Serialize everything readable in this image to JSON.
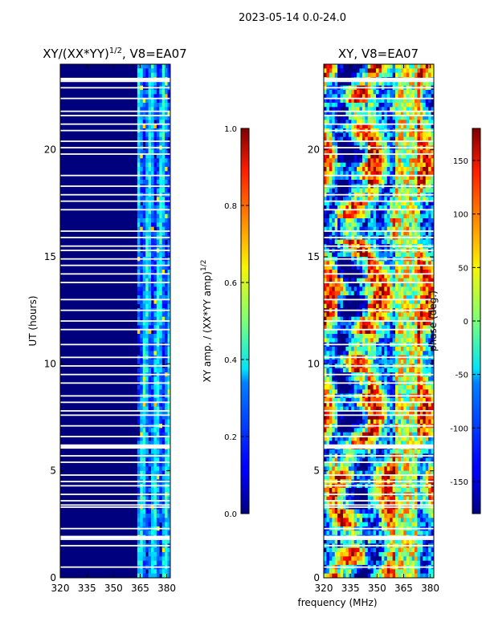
{
  "suptitle": "2023-05-14 0.0-24.0",
  "shared": {
    "xlabel": "frequency (MHz)",
    "ylabel": "UT (hours)"
  },
  "chart_data": [
    {
      "type": "heatmap",
      "title_main": "XY/(XX*YY)",
      "title_sup": "1/2",
      "title_rest": ", V8=EA07",
      "xlim": [
        320,
        382
      ],
      "ylim": [
        0,
        24
      ],
      "xticks": [
        320,
        335,
        350,
        365,
        380
      ],
      "yticks": [
        0,
        5,
        10,
        15,
        20
      ],
      "colorbar": {
        "label_main": "XY amp. / (XX*YY amp)",
        "label_sup": "1/2",
        "range": [
          0.0,
          1.0
        ],
        "ticks": [
          "0.0",
          "0.2",
          "0.4",
          "0.6",
          "0.8",
          "1.0"
        ],
        "colormap": "jet"
      }
    },
    {
      "type": "heatmap",
      "title": "XY, V8=EA07",
      "xlim": [
        320,
        382
      ],
      "ylim": [
        0,
        24
      ],
      "xticks": [
        320,
        335,
        350,
        365,
        380
      ],
      "yticks": [
        0,
        5,
        10,
        15,
        20
      ],
      "colorbar": {
        "label": "phase (deg.)",
        "range": [
          -180,
          180
        ],
        "ticks": [
          150,
          100,
          50,
          0,
          -50,
          -100,
          -150
        ],
        "colormap": "jet"
      }
    }
  ]
}
